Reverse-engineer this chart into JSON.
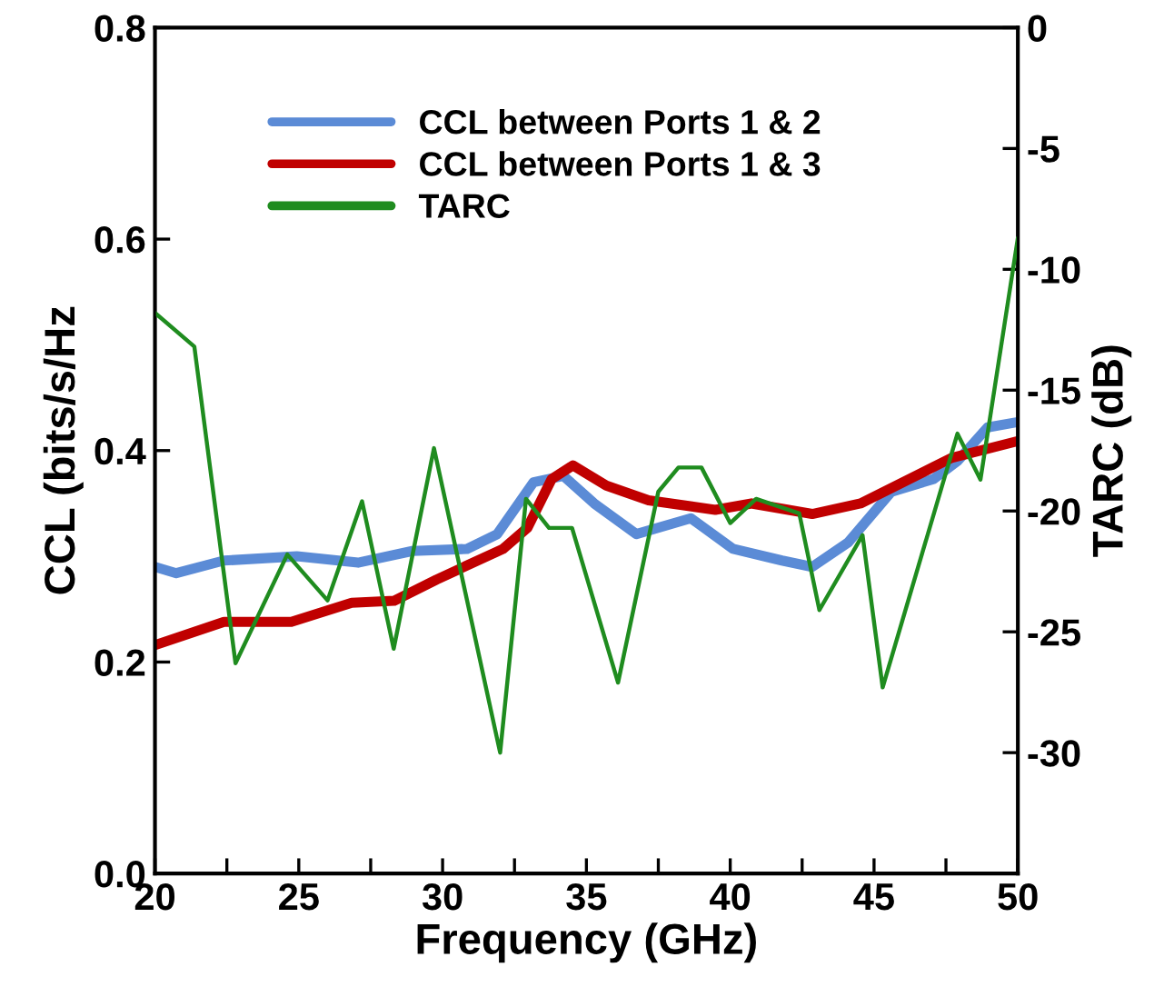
{
  "chart_data": {
    "type": "line",
    "xlabel": "Frequency (GHz)",
    "ylabel": "CCL (bits/s/Hz",
    "y2label": "TARC (dB)",
    "xlim": [
      20,
      50
    ],
    "xticks": [
      20,
      {
        "value": 22.5,
        "label": null
      },
      25,
      {
        "value": 27.5,
        "label": null
      },
      30,
      {
        "value": 32.5,
        "label": null
      },
      35,
      {
        "value": 37.5,
        "label": null
      },
      40,
      {
        "value": 42.5,
        "label": null
      },
      45,
      {
        "value": 47.5,
        "label": null
      },
      50
    ],
    "ylim": [
      0,
      0.8
    ],
    "yticks": [
      {
        "value": 0,
        "label": "0.0"
      },
      {
        "value": 0.2,
        "label": "0.2"
      },
      {
        "value": 0.4,
        "label": "0.4"
      },
      {
        "value": 0.6,
        "label": "0.6"
      },
      {
        "value": 0.8,
        "label": "0.8"
      }
    ],
    "y2lim": [
      -35,
      0
    ],
    "y2ticks": [
      {
        "value": -30,
        "label": "-30"
      },
      {
        "value": -25,
        "label": "-25"
      },
      {
        "value": -20,
        "label": "-20"
      },
      {
        "value": -15,
        "label": "-15"
      },
      {
        "value": -10,
        "label": "-10"
      },
      {
        "value": -5,
        "label": "-5"
      },
      0
    ],
    "legend": "top left",
    "grid": false,
    "marker": "none",
    "line_style": "solid",
    "series": [
      {
        "name": "CCL between Ports 1 & 2",
        "color": "#5b8bd6",
        "x": [
          20,
          20.74,
          22.4,
          24.93,
          27.06,
          28.95,
          30.85,
          31.9,
          33.16,
          34.2,
          35.27,
          36.74,
          38.63,
          40.1,
          41.8,
          42.85,
          44.1,
          45.6,
          47.06,
          47.9,
          48.95,
          50
        ],
        "values": [
          0.29,
          0.284,
          0.296,
          0.3,
          0.294,
          0.305,
          0.307,
          0.321,
          0.37,
          0.376,
          0.35,
          0.321,
          0.336,
          0.307,
          0.296,
          0.29,
          0.313,
          0.361,
          0.373,
          0.39,
          0.422,
          0.427
        ]
      },
      {
        "name": "CCL between Ports 1 & 3",
        "color": "#c00000",
        "x": [
          20,
          22.4,
          24.74,
          26.84,
          28.32,
          29.79,
          32.1,
          32.95,
          33.79,
          34.53,
          35.69,
          37.16,
          39.48,
          40.74,
          42.85,
          44.53,
          46.22,
          47.69,
          50
        ],
        "values": [
          0.216,
          0.238,
          0.238,
          0.256,
          0.258,
          0.278,
          0.307,
          0.327,
          0.373,
          0.386,
          0.367,
          0.353,
          0.344,
          0.35,
          0.34,
          0.35,
          0.373,
          0.393,
          0.409
        ]
      },
      {
        "name": "TARC",
        "color": "#1f8c1f",
        "axis": "y2",
        "x": [
          20,
          21.37,
          22.8,
          24.6,
          26.0,
          27.2,
          28.3,
          29.7,
          32.0,
          32.9,
          33.7,
          34.5,
          36.1,
          37.5,
          38.2,
          39.0,
          40.0,
          40.9,
          42.4,
          43.1,
          44.6,
          45.3,
          47.9,
          48.7,
          50
        ],
        "values": [
          -11.8,
          -13.2,
          -26.3,
          -21.8,
          -23.7,
          -19.6,
          -25.7,
          -17.4,
          -30.0,
          -19.5,
          -20.7,
          -20.7,
          -27.1,
          -19.2,
          -18.2,
          -18.2,
          -20.5,
          -19.5,
          -20.1,
          -24.1,
          -21.0,
          -27.3,
          -16.8,
          -18.7,
          -8.7
        ]
      }
    ]
  }
}
